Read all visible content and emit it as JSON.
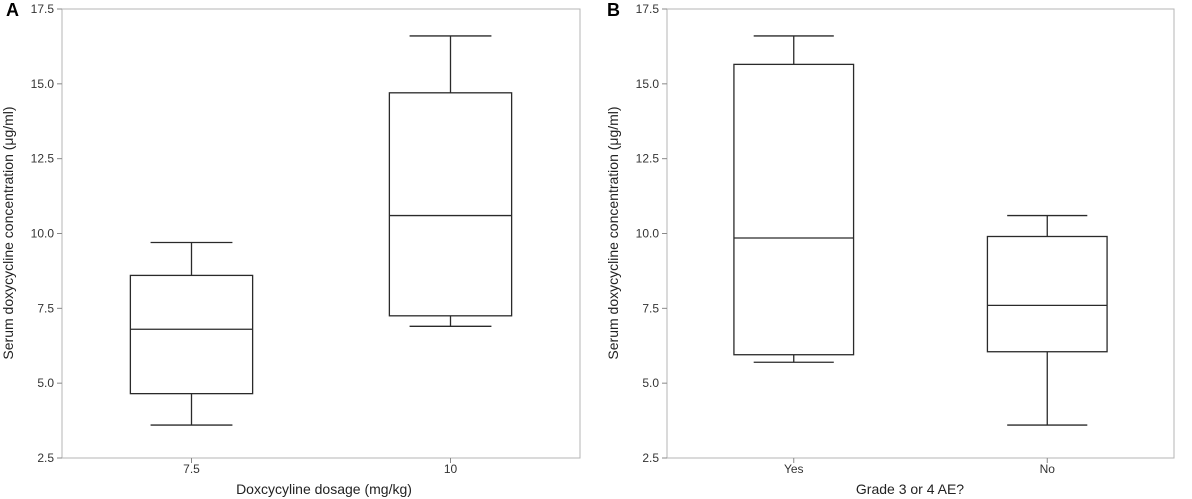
{
  "chart_data": [
    {
      "type": "boxplot",
      "panel_label": "A",
      "xlabel": "Doxcycyline dosage (mg/kg)",
      "ylabel": "Serum doxycycline concentration (μg/ml)",
      "ylim": [
        2.5,
        17.5
      ],
      "yticks": [
        "2.5",
        "5.0",
        "7.5",
        "10.0",
        "12.5",
        "15.0",
        "17.5"
      ],
      "categories": [
        "7.5",
        "10"
      ],
      "boxes": [
        {
          "min": 3.6,
          "q1": 4.65,
          "median": 6.8,
          "q3": 8.6,
          "max": 9.7
        },
        {
          "min": 6.9,
          "q1": 7.25,
          "median": 10.6,
          "q3": 14.7,
          "max": 16.6
        }
      ]
    },
    {
      "type": "boxplot",
      "panel_label": "B",
      "xlabel": "Grade 3 or 4 AE?",
      "ylabel": "Serum doxycycline concentration (μg/ml)",
      "ylim": [
        2.5,
        17.5
      ],
      "yticks": [
        "2.5",
        "5.0",
        "7.5",
        "10.0",
        "12.5",
        "15.0",
        "17.5"
      ],
      "categories": [
        "Yes",
        "No"
      ],
      "boxes": [
        {
          "min": 5.7,
          "q1": 5.95,
          "median": 9.85,
          "q3": 15.65,
          "max": 16.6
        },
        {
          "min": 3.6,
          "q1": 6.05,
          "median": 7.6,
          "q3": 9.9,
          "max": 10.6
        }
      ]
    }
  ]
}
